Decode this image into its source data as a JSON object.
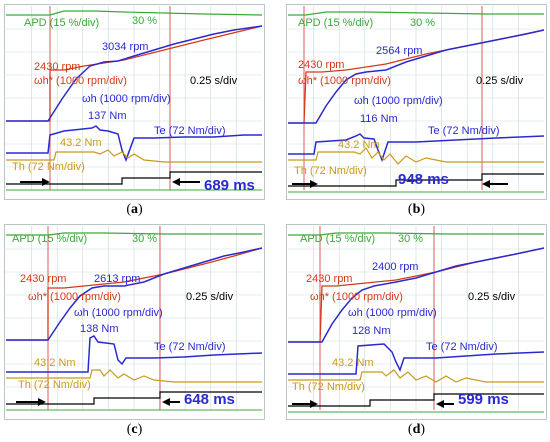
{
  "colors": {
    "apd": "#3aa93a",
    "speed_actual": "#2a2ad0",
    "speed_ref": "#d43a1a",
    "torque_est": "#2a2ad0",
    "torque_load": "#c89a1a",
    "flag": "#000000",
    "grid": "#c9d9d9",
    "marker": "#e05a5a",
    "background": "#ffffff"
  },
  "panels": [
    {
      "caption": "a",
      "labels": {
        "apd": "APD (15 %/div)",
        "apd_value": "30 %",
        "speed_ref_value": "2430 rpm",
        "speed_ref": "ωh* (1000 rpm/div)",
        "speed_peak": "3034 rpm",
        "speed": "ωh (1000 rpm/div)",
        "time_div": "0.25 s/div",
        "torque_peak": "137 Nm",
        "torque": "Te (72 Nm/div)",
        "load_value": "43.2 Nm",
        "load": "Th (72 Nm/div)",
        "duration": "689 ms"
      }
    },
    {
      "caption": "b",
      "labels": {
        "apd": "APD (15 %/div)",
        "apd_value": "30 %",
        "speed_ref_value": "2430 rpm",
        "speed_ref": "ωh* (1000 rpm/div)",
        "speed_peak": "2564 rpm",
        "speed": "ωh (1000 rpm/div)",
        "time_div": "0.25 s/div",
        "torque_peak": "116 Nm",
        "torque": "Te (72 Nm/div)",
        "load_value": "43.2 Nm",
        "load": "Th (72 Nm/div)",
        "duration": "948 ms"
      }
    },
    {
      "caption": "c",
      "labels": {
        "apd": "APD (15 %/div)",
        "apd_value": "30 %",
        "speed_ref_value": "2430 rpm",
        "speed_ref": "ωh* (1000 rpm/div)",
        "speed_peak": "2613 rpm",
        "speed": "ωh (1000 rpm/div)",
        "time_div": "0.25 s/div",
        "torque_peak": "138 Nm",
        "torque": "Te (72 Nm/div)",
        "load_value": "43.2 Nm",
        "load": "Th (72 Nm/div)",
        "duration": "648 ms"
      }
    },
    {
      "caption": "d",
      "labels": {
        "apd": "APD (15 %/div)",
        "apd_value": "30 %",
        "speed_ref_value": "2430 rpm",
        "speed_ref": "ωh* (1000 rpm/div)",
        "speed_peak": "2400 rpm",
        "speed": "ωh (1000 rpm/div)",
        "time_div": "0.25 s/div",
        "torque_peak": "128 Nm",
        "torque": "Te (72 Nm/div)",
        "load_value": "43.2 Nm",
        "load": "Th (72 Nm/div)",
        "duration": "599 ms"
      }
    }
  ],
  "chart_data": [
    {
      "type": "line",
      "panel": "a",
      "time_div": "0.25 s/div",
      "apd_percent": 30,
      "speed_ref_rpm": 2430,
      "speed_peak_rpm": 3034,
      "torque_peak_nm": 137,
      "load_torque_nm": 43.2,
      "duration_ms": 689
    },
    {
      "type": "line",
      "panel": "b",
      "time_div": "0.25 s/div",
      "apd_percent": 30,
      "speed_ref_rpm": 2430,
      "speed_peak_rpm": 2564,
      "torque_peak_nm": 116,
      "load_torque_nm": 43.2,
      "duration_ms": 948
    },
    {
      "type": "line",
      "panel": "c",
      "time_div": "0.25 s/div",
      "apd_percent": 30,
      "speed_ref_rpm": 2430,
      "speed_peak_rpm": 2613,
      "torque_peak_nm": 138,
      "load_torque_nm": 43.2,
      "duration_ms": 648
    },
    {
      "type": "line",
      "panel": "d",
      "time_div": "0.25 s/div",
      "apd_percent": 30,
      "speed_ref_rpm": 2430,
      "speed_peak_rpm": 2400,
      "torque_peak_nm": 128,
      "load_torque_nm": 43.2,
      "duration_ms": 599
    }
  ]
}
